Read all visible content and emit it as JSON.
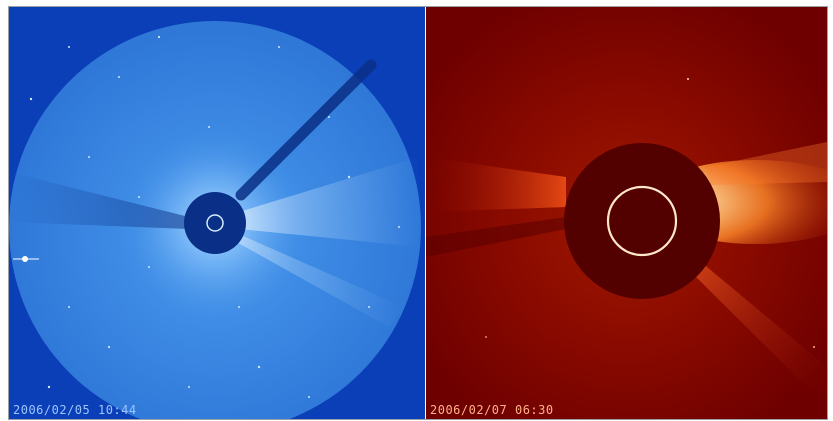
{
  "panels": [
    {
      "id": "lasco-c3",
      "timestamp": "2006/02/05  10:44",
      "colors": {
        "background": "#0b3fb8",
        "field": "#3f8de6",
        "occulter": "#0a2f86",
        "text": "#9cc4ff"
      }
    },
    {
      "id": "lasco-c2",
      "timestamp": "2006/02/07  06:30",
      "colors": {
        "background": "#7a0000",
        "field": "#8a0a00",
        "occulter": "#520000",
        "text": "#ffb28a"
      }
    }
  ]
}
